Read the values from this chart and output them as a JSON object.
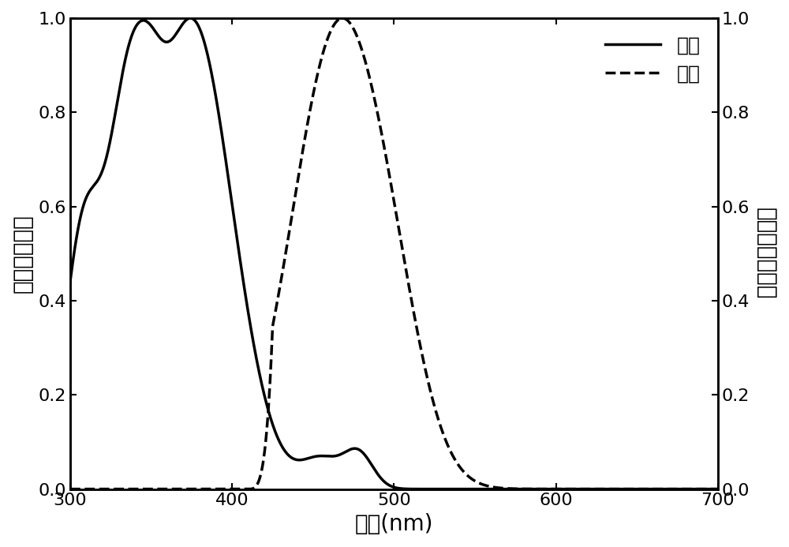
{
  "xlim": [
    300,
    700
  ],
  "ylim": [
    0.0,
    1.0
  ],
  "xlabel": "波长(nm)",
  "ylabel_left": "归一化吸收值",
  "ylabel_right": "归一化荧光强度",
  "legend_absorption": "吸收",
  "legend_fluorescence": "荧光",
  "xticks": [
    300,
    400,
    500,
    600,
    700
  ],
  "yticks_left": [
    0.0,
    0.2,
    0.4,
    0.6,
    0.8,
    1.0
  ],
  "yticks_right": [
    0.0,
    0.2,
    0.4,
    0.6,
    0.8,
    1.0
  ],
  "line_color": "#000000",
  "background_color": "#ffffff",
  "linewidth": 2.5,
  "font_size_label": 20,
  "font_size_tick": 16,
  "font_size_legend": 18,
  "abs_peaks": [
    {
      "mu": 375,
      "sigma": 25,
      "amp": 1.1
    },
    {
      "mu": 335,
      "sigma": 12,
      "amp": 0.65
    },
    {
      "mu": 350,
      "sigma": 8,
      "amp": 0.12
    },
    {
      "mu": 455,
      "sigma": 12,
      "amp": 0.068
    },
    {
      "mu": 478,
      "sigma": 9,
      "amp": 0.082
    },
    {
      "mu": 308,
      "sigma": 12,
      "amp": 0.58
    }
  ],
  "fl_peaks": [
    {
      "mu": 465,
      "sigma": 28,
      "amp": 1.0
    },
    {
      "mu": 500,
      "sigma": 20,
      "amp": 0.18
    }
  ],
  "fl_cutoff": 420
}
